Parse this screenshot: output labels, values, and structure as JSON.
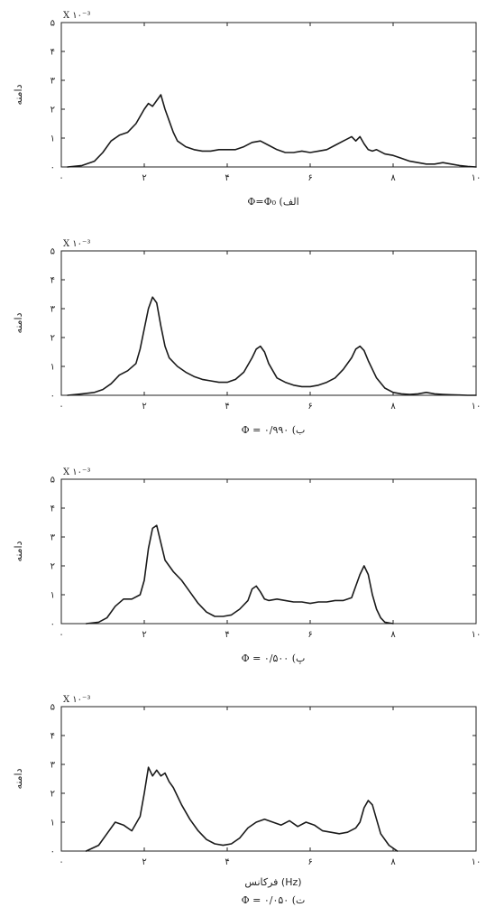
{
  "chart_data": [
    {
      "type": "line",
      "exponent_label": "X ۱۰⁻³",
      "ylabel": "دامنه",
      "xlabel": "",
      "caption": "Φ=Φ₀ (الف",
      "xlim": [
        0,
        10
      ],
      "ylim": [
        0,
        5
      ],
      "x_ticks": [
        0,
        2,
        4,
        6,
        8,
        10
      ],
      "x_tick_labels": [
        "۰",
        "۲",
        "۴",
        "۶",
        "۸",
        "۱۰"
      ],
      "y_ticks": [
        0,
        1,
        2,
        3,
        4,
        5
      ],
      "y_tick_labels": [
        "۰",
        "۱",
        "۲",
        "۳",
        "۴",
        "۵"
      ],
      "series": [
        {
          "x": [
            0.15,
            0.5,
            0.8,
            1.0,
            1.2,
            1.4,
            1.6,
            1.8,
            2.0,
            2.1,
            2.2,
            2.3,
            2.4,
            2.5,
            2.6,
            2.7,
            2.8,
            3.0,
            3.2,
            3.4,
            3.6,
            3.8,
            4.0,
            4.2,
            4.4,
            4.6,
            4.8,
            5.0,
            5.2,
            5.4,
            5.6,
            5.8,
            6.0,
            6.2,
            6.4,
            6.6,
            6.8,
            7.0,
            7.1,
            7.2,
            7.3,
            7.4,
            7.5,
            7.6,
            7.8,
            8.0,
            8.2,
            8.4,
            8.6,
            8.8,
            9.0,
            9.2,
            9.4,
            9.6,
            9.8,
            10.0
          ],
          "y": [
            0.0,
            0.05,
            0.2,
            0.5,
            0.9,
            1.1,
            1.2,
            1.5,
            2.0,
            2.2,
            2.1,
            2.3,
            2.5,
            2.0,
            1.6,
            1.2,
            0.9,
            0.7,
            0.6,
            0.55,
            0.55,
            0.6,
            0.6,
            0.6,
            0.7,
            0.85,
            0.9,
            0.75,
            0.6,
            0.5,
            0.5,
            0.55,
            0.5,
            0.55,
            0.6,
            0.75,
            0.9,
            1.05,
            0.9,
            1.05,
            0.8,
            0.6,
            0.55,
            0.6,
            0.45,
            0.4,
            0.3,
            0.2,
            0.15,
            0.1,
            0.1,
            0.15,
            0.1,
            0.05,
            0.02,
            0.0
          ]
        }
      ]
    },
    {
      "type": "line",
      "exponent_label": "X ۱۰⁻³",
      "ylabel": "دامنه",
      "xlabel": "",
      "caption": "Φ = ۰/۹۹۰ (ب",
      "xlim": [
        0,
        10
      ],
      "ylim": [
        0,
        5
      ],
      "x_ticks": [
        0,
        2,
        4,
        6,
        8,
        10
      ],
      "x_tick_labels": [
        "۰",
        "۲",
        "۴",
        "۶",
        "۸",
        "۱۰"
      ],
      "y_ticks": [
        0,
        1,
        2,
        3,
        4,
        5
      ],
      "y_tick_labels": [
        "۰",
        "۱",
        "۲",
        "۳",
        "۴",
        "۵"
      ],
      "series": [
        {
          "x": [
            0.15,
            0.5,
            0.8,
            1.0,
            1.2,
            1.4,
            1.6,
            1.8,
            1.9,
            2.0,
            2.1,
            2.2,
            2.3,
            2.4,
            2.5,
            2.6,
            2.8,
            3.0,
            3.2,
            3.4,
            3.6,
            3.8,
            4.0,
            4.2,
            4.4,
            4.6,
            4.7,
            4.8,
            4.9,
            5.0,
            5.2,
            5.4,
            5.6,
            5.8,
            6.0,
            6.2,
            6.4,
            6.6,
            6.8,
            7.0,
            7.1,
            7.2,
            7.3,
            7.4,
            7.6,
            7.8,
            8.0,
            8.2,
            8.4,
            8.6,
            8.8,
            9.0,
            9.2,
            9.4,
            9.6,
            9.8,
            10.0
          ],
          "y": [
            0.0,
            0.05,
            0.1,
            0.2,
            0.4,
            0.7,
            0.85,
            1.1,
            1.6,
            2.3,
            3.0,
            3.4,
            3.2,
            2.4,
            1.7,
            1.3,
            1.0,
            0.8,
            0.65,
            0.55,
            0.5,
            0.45,
            0.45,
            0.55,
            0.8,
            1.3,
            1.6,
            1.7,
            1.5,
            1.1,
            0.6,
            0.45,
            0.35,
            0.3,
            0.3,
            0.35,
            0.45,
            0.6,
            0.9,
            1.3,
            1.6,
            1.7,
            1.55,
            1.2,
            0.6,
            0.25,
            0.1,
            0.05,
            0.03,
            0.05,
            0.1,
            0.05,
            0.03,
            0.02,
            0.01,
            0.0,
            0.0
          ]
        }
      ]
    },
    {
      "type": "line",
      "exponent_label": "X ۱۰⁻³",
      "ylabel": "دامنه",
      "xlabel": "",
      "caption": "Φ = ۰/۵۰۰ (پ",
      "xlim": [
        0,
        10
      ],
      "ylim": [
        0,
        5
      ],
      "x_ticks": [
        0,
        2,
        4,
        6,
        8,
        10
      ],
      "x_tick_labels": [
        "۰",
        "۲",
        "۴",
        "۶",
        "۸",
        "۱۰"
      ],
      "y_ticks": [
        0,
        1,
        2,
        3,
        4,
        5
      ],
      "y_tick_labels": [
        "۰",
        "۱",
        "۲",
        "۳",
        "۴",
        "۵"
      ],
      "series": [
        {
          "x": [
            0.6,
            0.9,
            1.1,
            1.3,
            1.5,
            1.7,
            1.9,
            2.0,
            2.1,
            2.2,
            2.3,
            2.4,
            2.5,
            2.6,
            2.7,
            2.9,
            3.1,
            3.3,
            3.5,
            3.7,
            3.9,
            4.1,
            4.3,
            4.5,
            4.6,
            4.7,
            4.8,
            4.9,
            5.0,
            5.2,
            5.4,
            5.6,
            5.8,
            6.0,
            6.2,
            6.4,
            6.6,
            6.8,
            7.0,
            7.1,
            7.2,
            7.3,
            7.4,
            7.5,
            7.6,
            7.7,
            7.8,
            8.0
          ],
          "y": [
            0.0,
            0.05,
            0.2,
            0.6,
            0.85,
            0.85,
            1.0,
            1.5,
            2.6,
            3.3,
            3.4,
            2.8,
            2.2,
            2.0,
            1.8,
            1.5,
            1.1,
            0.7,
            0.4,
            0.25,
            0.25,
            0.3,
            0.5,
            0.8,
            1.2,
            1.3,
            1.1,
            0.85,
            0.8,
            0.85,
            0.8,
            0.75,
            0.75,
            0.7,
            0.75,
            0.75,
            0.8,
            0.8,
            0.9,
            1.3,
            1.7,
            2.0,
            1.7,
            1.0,
            0.5,
            0.2,
            0.05,
            0.0
          ]
        }
      ]
    },
    {
      "type": "line",
      "exponent_label": "X ۱۰⁻³",
      "ylabel": "دامنه",
      "xlabel": "فرکانس (Hz)",
      "caption": "Φ = ۰/۰۵۰ (ت",
      "xlim": [
        0,
        10
      ],
      "ylim": [
        0,
        5
      ],
      "x_ticks": [
        0,
        2,
        4,
        6,
        8,
        10
      ],
      "x_tick_labels": [
        "۰",
        "۲",
        "۴",
        "۶",
        "۸",
        "۱۰"
      ],
      "y_ticks": [
        0,
        1,
        2,
        3,
        4,
        5
      ],
      "y_tick_labels": [
        "۰",
        "۱",
        "۲",
        "۳",
        "۴",
        "۵"
      ],
      "series": [
        {
          "x": [
            0.6,
            0.9,
            1.1,
            1.3,
            1.5,
            1.7,
            1.9,
            2.0,
            2.1,
            2.2,
            2.3,
            2.4,
            2.5,
            2.6,
            2.7,
            2.9,
            3.1,
            3.3,
            3.5,
            3.7,
            3.9,
            4.1,
            4.3,
            4.5,
            4.7,
            4.9,
            5.1,
            5.3,
            5.5,
            5.7,
            5.9,
            6.1,
            6.3,
            6.5,
            6.7,
            6.9,
            7.1,
            7.2,
            7.3,
            7.4,
            7.5,
            7.6,
            7.7,
            7.9,
            8.1
          ],
          "y": [
            0.0,
            0.2,
            0.6,
            1.0,
            0.9,
            0.7,
            1.2,
            2.0,
            2.9,
            2.6,
            2.8,
            2.6,
            2.7,
            2.4,
            2.2,
            1.6,
            1.1,
            0.7,
            0.4,
            0.25,
            0.2,
            0.25,
            0.45,
            0.8,
            1.0,
            1.1,
            1.0,
            0.9,
            1.05,
            0.85,
            1.0,
            0.9,
            0.7,
            0.65,
            0.6,
            0.65,
            0.8,
            1.0,
            1.5,
            1.75,
            1.6,
            1.1,
            0.6,
            0.2,
            0.0
          ]
        }
      ]
    }
  ]
}
